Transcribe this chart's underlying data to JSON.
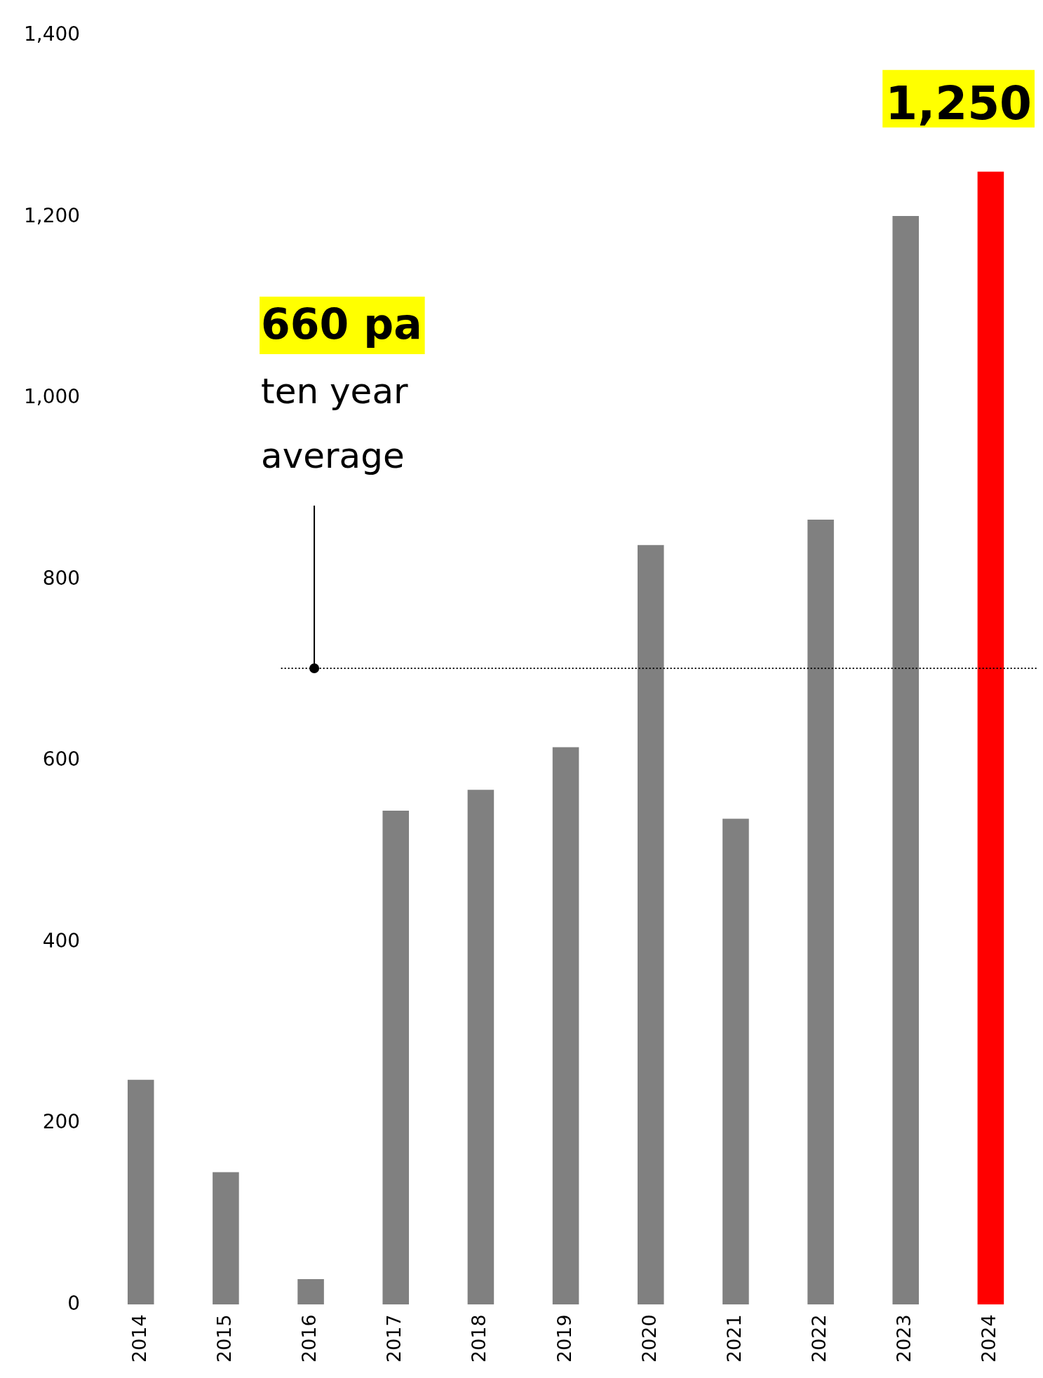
{
  "chart_data": {
    "type": "bar",
    "categories": [
      "2014",
      "2015",
      "2016",
      "2017",
      "2018",
      "2019",
      "2020",
      "2021",
      "2022",
      "2023",
      "2024"
    ],
    "values": [
      248,
      146,
      28,
      545,
      568,
      615,
      838,
      536,
      866,
      1201,
      1250
    ],
    "colors": [
      "#808080",
      "#808080",
      "#808080",
      "#808080",
      "#808080",
      "#808080",
      "#808080",
      "#808080",
      "#808080",
      "#808080",
      "#ff0000"
    ],
    "value_labels": [
      null,
      null,
      null,
      null,
      null,
      null,
      null,
      null,
      null,
      null,
      "1,250"
    ],
    "ylim": [
      0,
      1400
    ],
    "yticks": [
      {
        "value": 0,
        "label": "0"
      },
      {
        "value": 200,
        "label": "200"
      },
      {
        "value": 400,
        "label": "400"
      },
      {
        "value": 600,
        "label": "600"
      },
      {
        "value": 800,
        "label": "800"
      },
      {
        "value": 1000,
        "label": "1,000"
      },
      {
        "value": 1200,
        "label": "1,200"
      },
      {
        "value": 1400,
        "label": "1,400"
      }
    ],
    "ref_lines": [
      {
        "axis": "y",
        "value": 702,
        "color": "#000000",
        "line_style": "dotted"
      }
    ],
    "annotations": [
      "660 pa",
      {
        "text": "ten year average",
        "x": "2016",
        "y": 702
      }
    ],
    "grid": false,
    "legend": false
  }
}
